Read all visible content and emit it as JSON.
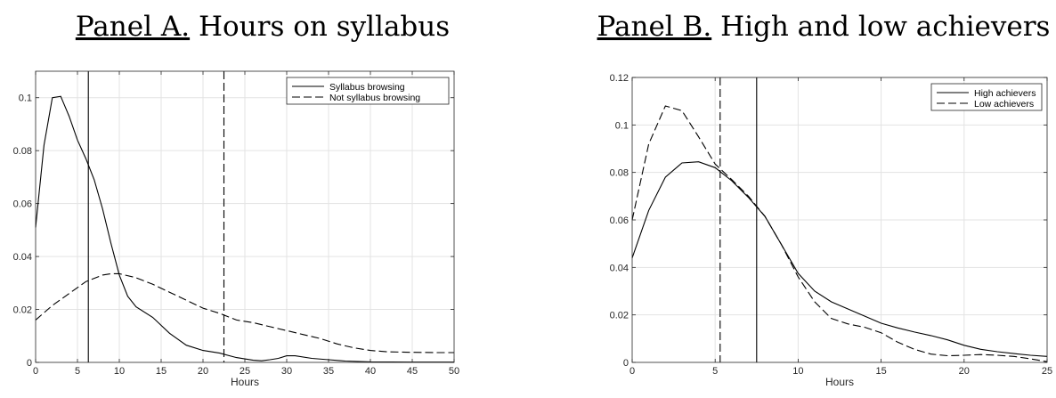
{
  "chart_data": [
    {
      "type": "line",
      "panel_label": "Panel A.",
      "title": "Hours on syllabus",
      "xlabel": "Hours",
      "ylabel": "",
      "xlim": [
        0,
        50
      ],
      "ylim": [
        0,
        0.11
      ],
      "xticks": [
        0,
        5,
        10,
        15,
        20,
        25,
        30,
        35,
        40,
        45,
        50
      ],
      "yticks": [
        0,
        0.02,
        0.04,
        0.06,
        0.08,
        0.1
      ],
      "ytick_labels": [
        "0",
        "0.02",
        "0.04",
        "0.06",
        "0.08",
        "0.1"
      ],
      "grid": true,
      "legend_position": "top-right",
      "series": [
        {
          "name": "Syllabus browsing",
          "style": "solid",
          "x": [
            0,
            1,
            2,
            3,
            4,
            5,
            6,
            7,
            8,
            9,
            10,
            11,
            12,
            14,
            16,
            18,
            20,
            22,
            24,
            26,
            27,
            28,
            29,
            30,
            31,
            33,
            35,
            37,
            40,
            45,
            50
          ],
          "y": [
            0.051,
            0.082,
            0.1,
            0.1005,
            0.093,
            0.084,
            0.077,
            0.069,
            0.058,
            0.045,
            0.033,
            0.025,
            0.021,
            0.017,
            0.011,
            0.0065,
            0.0045,
            0.0035,
            0.0018,
            0.0008,
            0.0006,
            0.001,
            0.0015,
            0.0025,
            0.0025,
            0.0015,
            0.001,
            0.0005,
            0.0002,
            0.0001,
            0.0001
          ]
        },
        {
          "name": "Not syllabus browsing",
          "style": "dashed",
          "x": [
            0,
            2,
            4,
            6,
            8,
            9,
            10,
            12,
            14,
            16,
            18,
            20,
            22,
            24,
            26,
            28,
            30,
            32,
            34,
            36,
            38,
            40,
            42,
            45,
            48,
            50
          ],
          "y": [
            0.016,
            0.0215,
            0.026,
            0.0305,
            0.033,
            0.0335,
            0.0335,
            0.032,
            0.0295,
            0.0265,
            0.0235,
            0.0205,
            0.0185,
            0.016,
            0.015,
            0.0135,
            0.012,
            0.0105,
            0.009,
            0.007,
            0.0055,
            0.0045,
            0.004,
            0.0038,
            0.0037,
            0.0037
          ]
        }
      ],
      "vlines": [
        {
          "x": 6.3,
          "style": "solid"
        },
        {
          "x": 22.5,
          "style": "dashed"
        }
      ]
    },
    {
      "type": "line",
      "panel_label": "Panel B.",
      "title": "High and low achievers",
      "xlabel": "Hours",
      "ylabel": "",
      "xlim": [
        0,
        25
      ],
      "ylim": [
        0,
        0.12
      ],
      "xticks": [
        0,
        5,
        10,
        15,
        20,
        25
      ],
      "yticks": [
        0,
        0.02,
        0.04,
        0.06,
        0.08,
        0.1,
        0.12
      ],
      "ytick_labels": [
        "0",
        "0.02",
        "0.04",
        "0.06",
        "0.08",
        "0.1",
        "0.12"
      ],
      "grid": true,
      "legend_position": "top-right",
      "series": [
        {
          "name": "High achievers",
          "style": "solid",
          "x": [
            0,
            1,
            2,
            3,
            4,
            5,
            6,
            7,
            8,
            9,
            10,
            11,
            12,
            13,
            14,
            15,
            16,
            17,
            18,
            19,
            20,
            21,
            22,
            23,
            24,
            25
          ],
          "y": [
            0.044,
            0.064,
            0.078,
            0.084,
            0.0845,
            0.082,
            0.0765,
            0.0695,
            0.0615,
            0.0495,
            0.0375,
            0.03,
            0.0255,
            0.0225,
            0.0195,
            0.0165,
            0.0145,
            0.0128,
            0.0113,
            0.0095,
            0.0072,
            0.0055,
            0.0045,
            0.0037,
            0.003,
            0.0025
          ]
        },
        {
          "name": "Low achievers",
          "style": "dashed",
          "x": [
            0,
            1,
            2,
            3,
            4,
            5,
            6,
            7,
            8,
            9,
            10,
            11,
            12,
            13,
            14,
            15,
            16,
            17,
            18,
            19,
            20,
            21,
            22,
            23,
            24,
            25
          ],
          "y": [
            0.06,
            0.092,
            0.108,
            0.106,
            0.095,
            0.0835,
            0.077,
            0.07,
            0.0615,
            0.0495,
            0.036,
            0.0255,
            0.0185,
            0.0162,
            0.0148,
            0.0125,
            0.0085,
            0.0055,
            0.0035,
            0.0028,
            0.003,
            0.0033,
            0.003,
            0.0025,
            0.0015,
            0.0003
          ]
        }
      ],
      "vlines": [
        {
          "x": 7.5,
          "style": "solid"
        },
        {
          "x": 5.3,
          "style": "dashed"
        }
      ]
    }
  ]
}
